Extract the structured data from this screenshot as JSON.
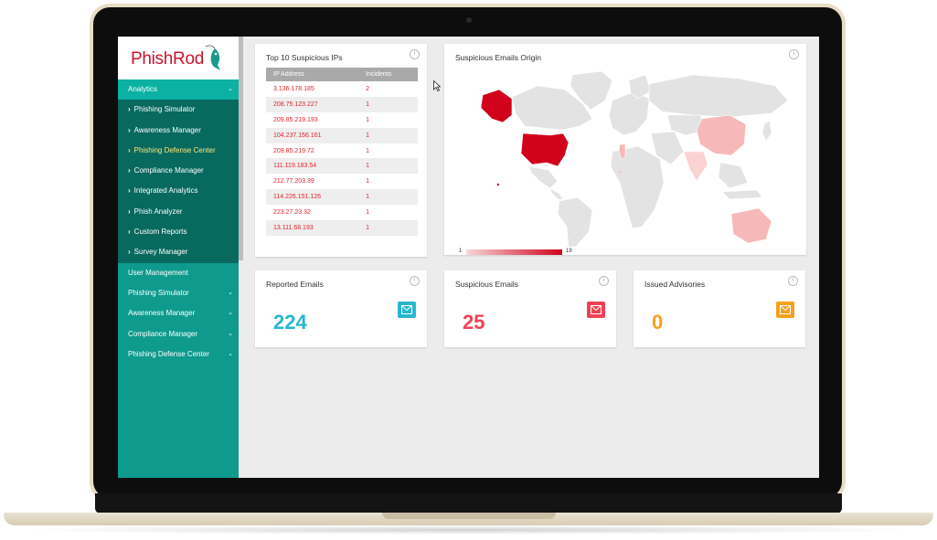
{
  "sidebar": {
    "logo": "PhishRod",
    "items": [
      {
        "label": "Analytics",
        "type": "active",
        "chevron": "⌄"
      },
      {
        "label": "Phishing Simulator",
        "type": "sub"
      },
      {
        "label": "Awareness Manager",
        "type": "sub"
      },
      {
        "label": "Phishing Defense Center",
        "type": "sub-selected"
      },
      {
        "label": "Compliance Manager",
        "type": "sub"
      },
      {
        "label": "Integrated Analytics",
        "type": "sub"
      },
      {
        "label": "Phish Analyzer",
        "type": "sub"
      },
      {
        "label": "Custom Reports",
        "type": "sub"
      },
      {
        "label": "Survey Manager",
        "type": "sub"
      },
      {
        "label": "User Management",
        "type": "main"
      },
      {
        "label": "Phishing Simulator",
        "type": "main",
        "chevron": "⌄"
      },
      {
        "label": "Awareness Manager",
        "type": "main",
        "chevron": "⌄"
      },
      {
        "label": "Compliance Manager",
        "type": "main",
        "chevron": "⌄"
      },
      {
        "label": "Phishing Defense Center",
        "type": "main",
        "chevron": "⌄"
      }
    ]
  },
  "suspicious_ips": {
    "title": "Top 10 Suspicious IPs",
    "columns": [
      "IP Address",
      "Incidents"
    ],
    "rows": [
      [
        "3.136.178.185",
        "2"
      ],
      [
        "208.75.123.227",
        "1"
      ],
      [
        "209.85.219.193",
        "1"
      ],
      [
        "104.237.156.161",
        "1"
      ],
      [
        "209.85.219.72",
        "1"
      ],
      [
        "111.119.183.54",
        "1"
      ],
      [
        "212.77.203.39",
        "1"
      ],
      [
        "114.226.151.126",
        "1"
      ],
      [
        "223.27.23.32",
        "1"
      ],
      [
        "13.111.68.193",
        "1"
      ]
    ],
    "text_color": "#e0242c"
  },
  "map": {
    "title": "Suspicious Emails Origin",
    "legend_min": "1",
    "legend_max": "19",
    "scale_colors": [
      "#f7d8d8",
      "#d0021b"
    ]
  },
  "stats": [
    {
      "label": "Reported Emails",
      "value": "224",
      "color": "#29b6d1",
      "icon": "envelope-icon"
    },
    {
      "label": "Suspicious Emails",
      "value": "25",
      "color": "#f04254",
      "icon": "envelope-icon"
    },
    {
      "label": "Issued Advisories",
      "value": "0",
      "color": "#f7a01c",
      "icon": "envelope-icon"
    }
  ],
  "info_glyph": "i"
}
